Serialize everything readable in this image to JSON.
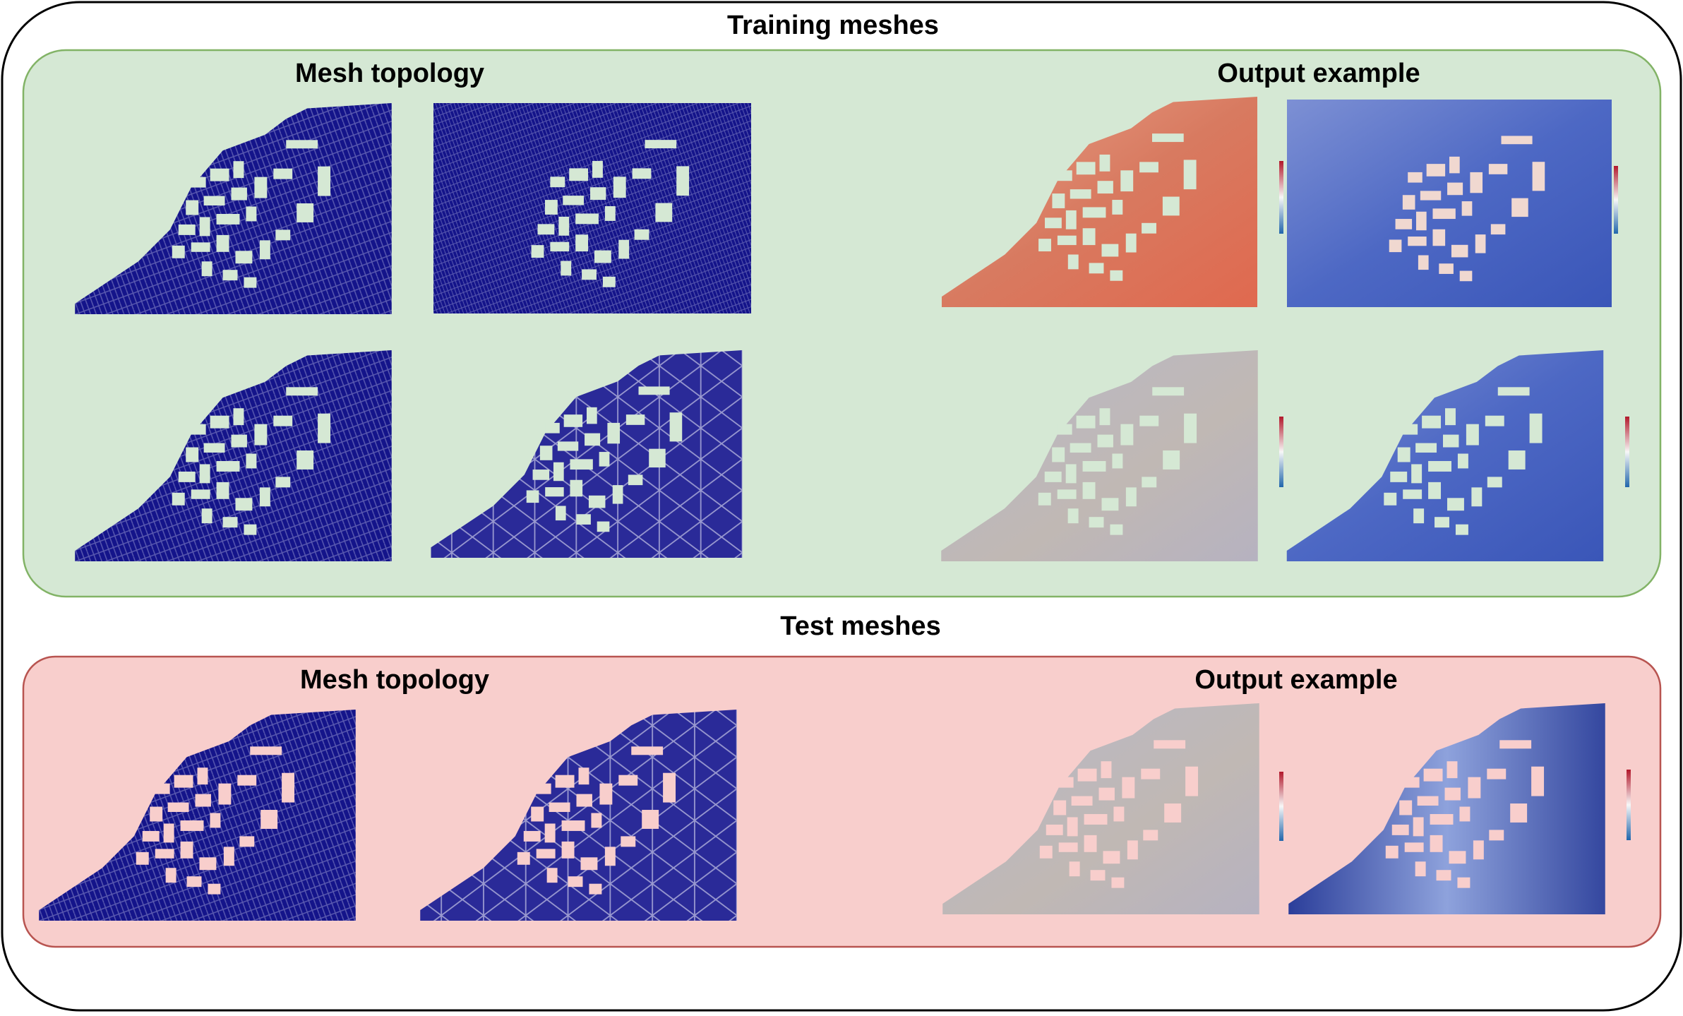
{
  "sections": [
    {
      "title": "Training meshes",
      "columns": [
        {
          "title": "Mesh topology"
        },
        {
          "title": "Output example"
        }
      ]
    },
    {
      "title": "Test meshes",
      "columns": [
        {
          "title": "Mesh topology"
        },
        {
          "title": "Output example"
        }
      ]
    }
  ]
}
